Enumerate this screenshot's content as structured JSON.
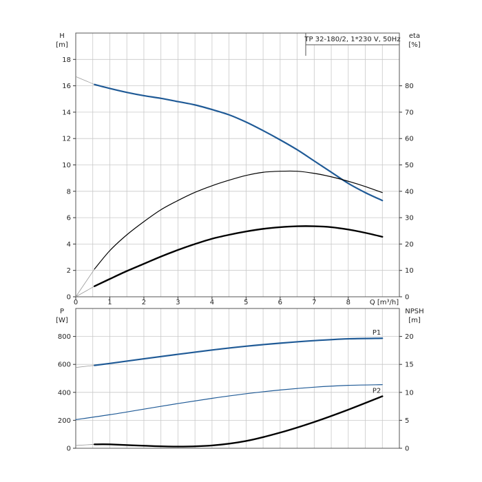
{
  "chart_data": [
    {
      "type": "line",
      "title": "TP 32-180/2, 1*230 V, 50Hz",
      "xlabel": "Q [m³/h]",
      "ylabel": "H",
      "ylabel_unit": "[m]",
      "y2label": "eta",
      "y2label_unit": "[%]",
      "xlim": [
        0,
        9.5
      ],
      "ylim": [
        0,
        20
      ],
      "y2lim": [
        0,
        100
      ],
      "xticks": [
        "0",
        "1",
        "2",
        "3",
        "4",
        "5",
        "6",
        "7",
        "8"
      ],
      "yticks": [
        "0",
        "2",
        "4",
        "6",
        "8",
        "10",
        "12",
        "14",
        "16",
        "18"
      ],
      "y2ticks": [
        "0",
        "10",
        "20",
        "30",
        "40",
        "50",
        "60",
        "70",
        "80"
      ],
      "grid": true,
      "series": [
        {
          "axis": "left",
          "color": "#1f5a96",
          "x": [
            0.55,
            1,
            1.5,
            2,
            2.5,
            3,
            3.5,
            4,
            4.5,
            5,
            5.5,
            6,
            6.5,
            7,
            7.5,
            8,
            8.5,
            9
          ],
          "values": [
            16.1,
            15.8,
            15.5,
            15.25,
            15.05,
            14.8,
            14.55,
            14.2,
            13.8,
            13.25,
            12.6,
            11.9,
            11.15,
            10.3,
            9.45,
            8.6,
            7.9,
            7.3
          ],
          "extension_x": [
            0,
            0.55
          ],
          "extension_values": [
            16.7,
            16.1
          ]
        },
        {
          "axis": "right",
          "color": "#000000",
          "x": [
            0.55,
            1,
            1.5,
            2,
            2.5,
            3,
            3.5,
            4,
            4.5,
            5,
            5.5,
            6,
            6.5,
            7,
            7.5,
            8,
            8.5,
            9
          ],
          "values": [
            10.5,
            17.5,
            23.5,
            28.5,
            33,
            36.5,
            39.6,
            42.1,
            44.2,
            46,
            47.2,
            47.6,
            47.6,
            46.8,
            45.5,
            43.8,
            41.8,
            39.5
          ],
          "extension_x": [
            0,
            0.55
          ],
          "extension_values": [
            0,
            10.5
          ]
        },
        {
          "axis": "left",
          "color": "#000000",
          "x": [
            0.55,
            1,
            1.5,
            2,
            2.5,
            3,
            3.5,
            4,
            4.5,
            5,
            5.5,
            6,
            6.5,
            7,
            7.5,
            8,
            8.5,
            9
          ],
          "values": [
            0.8,
            1.35,
            1.95,
            2.5,
            3.05,
            3.55,
            4.0,
            4.4,
            4.7,
            4.95,
            5.15,
            5.28,
            5.35,
            5.35,
            5.28,
            5.1,
            4.85,
            4.55
          ],
          "extension_x": [
            0,
            0.55
          ],
          "extension_values": [
            0,
            0.8
          ]
        }
      ]
    },
    {
      "type": "line",
      "ylabel": "P",
      "ylabel_unit": "[W]",
      "y2label": "NPSH",
      "y2label_unit": "[m]",
      "xlim": [
        0,
        9.5
      ],
      "ylim": [
        0,
        1000
      ],
      "y2lim": [
        0,
        25
      ],
      "yticks": [
        "0",
        "200",
        "400",
        "600",
        "800"
      ],
      "y2ticks": [
        "0",
        "5",
        "10",
        "15",
        "20"
      ],
      "grid": true,
      "series": [
        {
          "name": "P1",
          "axis": "left",
          "color": "#1f5a96",
          "x": [
            0.55,
            1,
            2,
            3,
            4,
            5,
            6,
            7,
            8,
            9
          ],
          "values": [
            593,
            607,
            640,
            672,
            703,
            730,
            752,
            770,
            783,
            787
          ],
          "extension_x": [
            0,
            0.55
          ],
          "extension_values": [
            578,
            593
          ]
        },
        {
          "name": "P2",
          "axis": "left",
          "color": "#1f5a96",
          "x": [
            0,
            1,
            2,
            3,
            4,
            5,
            6,
            7,
            8,
            9
          ],
          "values": [
            205,
            240,
            280,
            320,
            357,
            390,
            417,
            437,
            450,
            455
          ]
        },
        {
          "axis": "right",
          "color": "#000000",
          "x": [
            0.55,
            1,
            2,
            3,
            4,
            5,
            6,
            7,
            8,
            9
          ],
          "values": [
            0.7,
            0.7,
            0.45,
            0.3,
            0.5,
            1.3,
            2.8,
            4.7,
            6.9,
            9.3
          ],
          "extension_x": [
            0,
            0.55
          ],
          "extension_values": [
            0.5,
            0.7
          ]
        }
      ]
    }
  ]
}
